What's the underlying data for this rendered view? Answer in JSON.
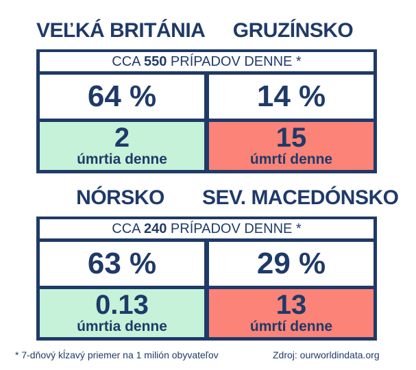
{
  "group1": {
    "left_country": "VEĽKÁ BRITÁNIA",
    "right_country": "GRUZÍNSKO",
    "subtitle_pre": "CCA",
    "subtitle_num": "550",
    "subtitle_post": "PRÍPADOV DENNE *",
    "left_pct": "64 %",
    "right_pct": "14 %",
    "left_deaths": "2",
    "left_deaths_label": "úmrtia denne",
    "right_deaths": "15",
    "right_deaths_label": "úmrtí denne"
  },
  "group2": {
    "left_country": "NÓRSKO",
    "right_country": "SEV. MACEDÓNSKO",
    "subtitle_pre": "CCA",
    "subtitle_num": "240",
    "subtitle_post": "PRÍPADOV DENNE *",
    "left_pct": "63 %",
    "right_pct": "29 %",
    "left_deaths": "0.13",
    "left_deaths_label": "úmrtia denne",
    "right_deaths": "13",
    "right_deaths_label": "úmrtí denne"
  },
  "footer": {
    "note": "* 7-dňový kĺzavý priemer na 1 milión obyvateľov",
    "source": "Zdroj: ourworldindata.org"
  },
  "colors": {
    "navy": "#1f3a68",
    "good": "#c5f2d8",
    "bad": "#fb8377"
  }
}
